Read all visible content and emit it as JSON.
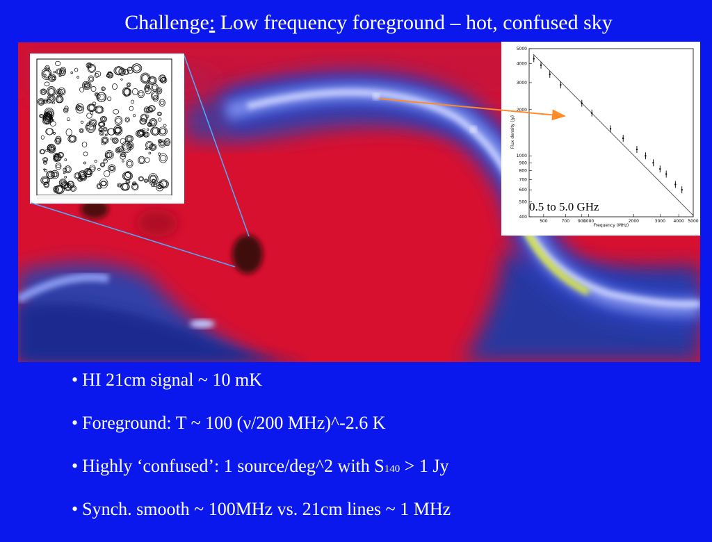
{
  "title": {
    "prefix": "Challenge",
    "colon": ":",
    "rest": " Low frequency foreground – hot, confused sky"
  },
  "spectrum_label": "0.5 to 5.0 GHz",
  "spectrum_plot": {
    "ylabel": "Flux density (Jy)",
    "xlabel": "Frequency (MHz)",
    "y_ticks": [
      "5000",
      "4000",
      "3000",
      "2000",
      "1000",
      "900",
      "800",
      "700",
      "600",
      "500",
      "400"
    ],
    "x_ticks": [
      "500",
      "700",
      "900",
      "1000",
      "2000",
      "3000",
      "4000",
      "5000"
    ]
  },
  "chart_data": {
    "type": "scatter",
    "title": "",
    "xlabel": "Frequency (MHz)",
    "ylabel": "Flux density (Jy)",
    "x_scale": "log",
    "y_scale": "log",
    "xlim": [
      400,
      5000
    ],
    "ylim": [
      400,
      5000
    ],
    "series": [
      {
        "x": [
          430,
          480,
          550,
          650,
          900,
          1050,
          1400,
          1700,
          2100,
          2400,
          2700,
          3000,
          3300,
          3800,
          4200
        ],
        "y": [
          4300,
          3900,
          3400,
          2900,
          2200,
          1900,
          1500,
          1300,
          1100,
          1000,
          900,
          820,
          760,
          650,
          600
        ]
      }
    ]
  },
  "bullets": [
    {
      "bullet": "•",
      "text": "HI 21cm signal ~ 10 mK"
    },
    {
      "bullet": "•",
      "pre": "Foreground:  T ~ 100 (",
      "nu": "ν",
      "post": "/200 MHz)^-2.6 K"
    },
    {
      "bullet": "•",
      "pre": "Highly ‘confused’: 1 source/deg^2 with S",
      "sub": "140",
      "post": " > 1 Jy"
    },
    {
      "bullet": "•",
      "text": "Synch.  smooth ~ 100MHz vs. 21cm lines ~ 1 MHz"
    }
  ],
  "colors": {
    "background": "#0a18ee",
    "sky_hot": "#e8102a",
    "sky_band": "#8fa0f0",
    "leader_line": "#4ab0ff",
    "arrow": "#ff8a28"
  }
}
